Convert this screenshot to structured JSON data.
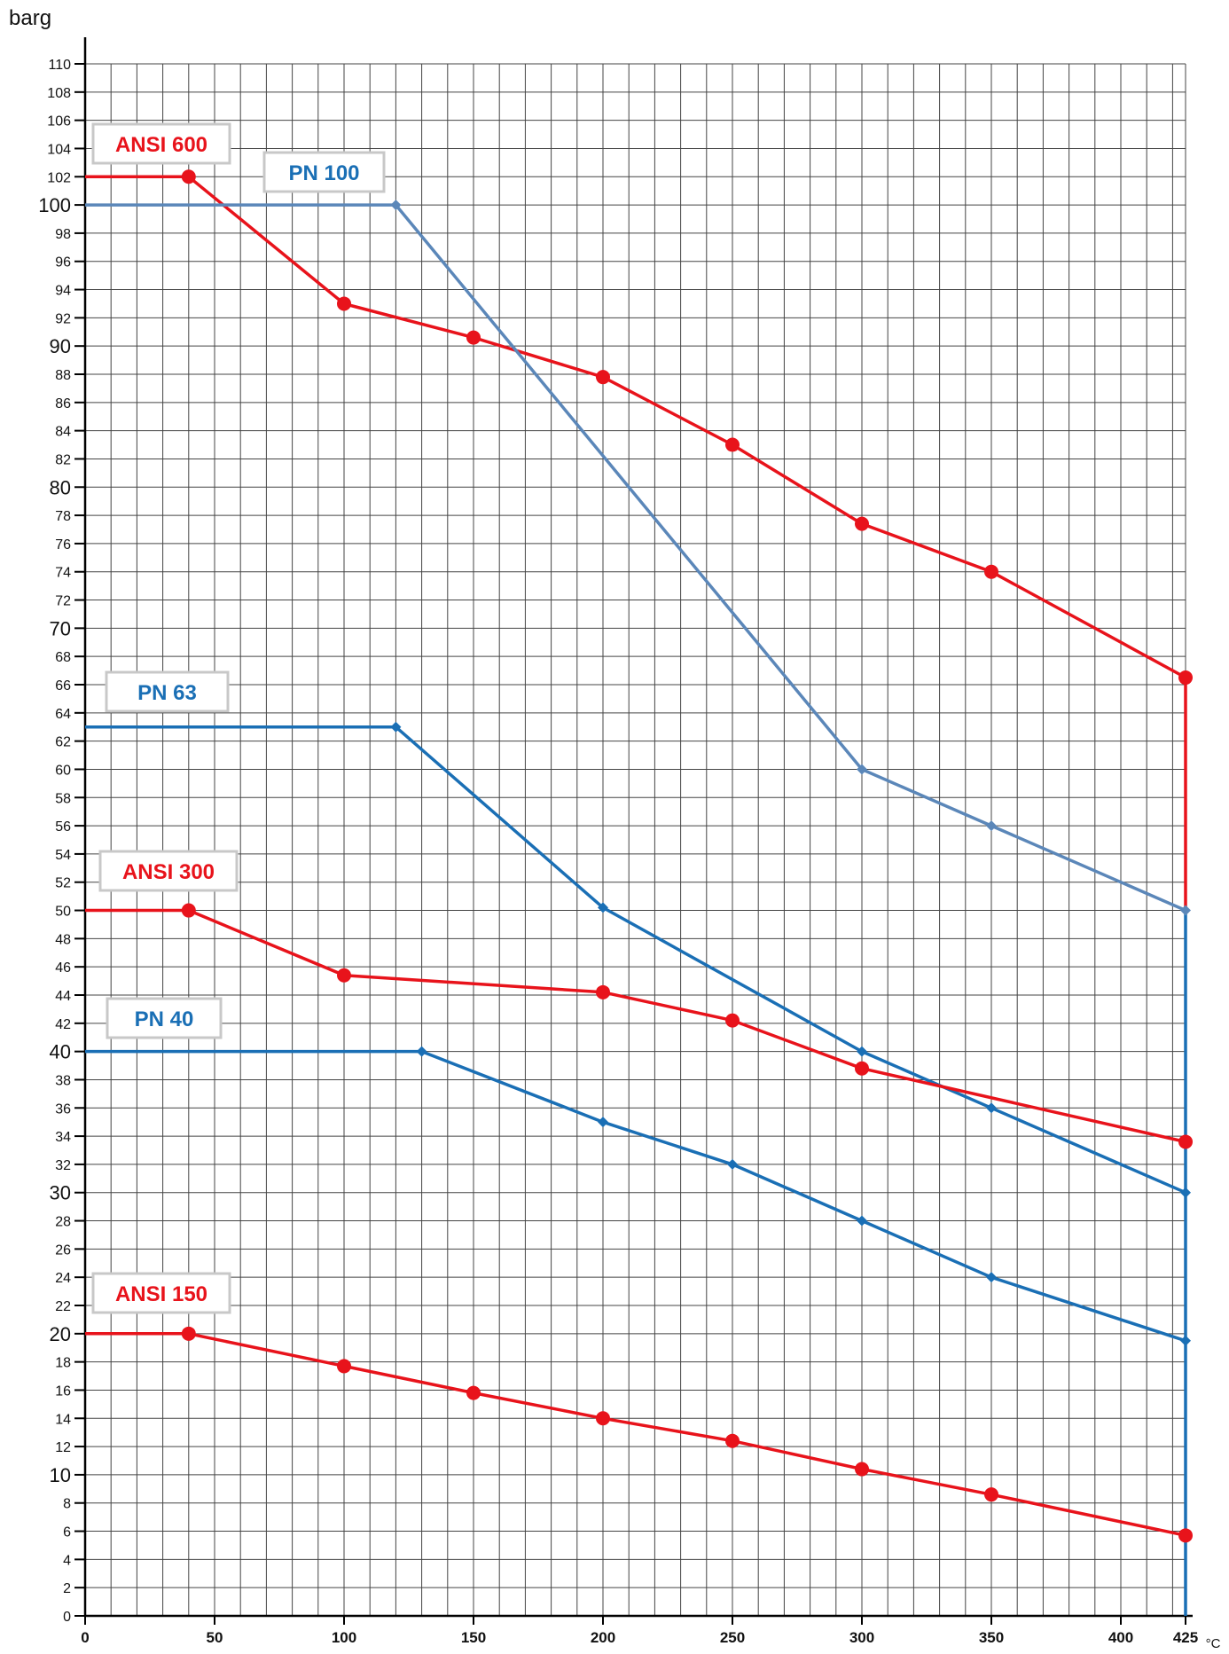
{
  "chart_data": {
    "type": "line",
    "title": "",
    "ylabel": "barg",
    "xlabel": "°C",
    "xlim": [
      0,
      425
    ],
    "ylim": [
      0,
      110
    ],
    "x_ticks": [
      "0",
      "50",
      "100",
      "150",
      "200",
      "250",
      "300",
      "350",
      "400",
      "425"
    ],
    "y_ticks": [
      {
        "v": 0,
        "label": "0"
      },
      {
        "v": 2,
        "label": "2"
      },
      {
        "v": 4,
        "label": "4"
      },
      {
        "v": 6,
        "label": "6"
      },
      {
        "v": 8,
        "label": "8"
      },
      {
        "v": 10,
        "label": "10",
        "major": true
      },
      {
        "v": 12,
        "label": "12"
      },
      {
        "v": 14,
        "label": "14"
      },
      {
        "v": 16,
        "label": "16"
      },
      {
        "v": 18,
        "label": "18"
      },
      {
        "v": 20,
        "label": "20",
        "major": true
      },
      {
        "v": 22,
        "label": "22"
      },
      {
        "v": 24,
        "label": "24"
      },
      {
        "v": 26,
        "label": "26"
      },
      {
        "v": 28,
        "label": "28"
      },
      {
        "v": 30,
        "label": "30",
        "major": true
      },
      {
        "v": 32,
        "label": "32"
      },
      {
        "v": 34,
        "label": "34"
      },
      {
        "v": 36,
        "label": "36"
      },
      {
        "v": 38,
        "label": "38"
      },
      {
        "v": 40,
        "label": "40",
        "major": true
      },
      {
        "v": 42,
        "label": "42"
      },
      {
        "v": 44,
        "label": "44"
      },
      {
        "v": 46,
        "label": "46"
      },
      {
        "v": 48,
        "label": "48"
      },
      {
        "v": 50,
        "label": "50"
      },
      {
        "v": 52,
        "label": "52"
      },
      {
        "v": 54,
        "label": "54"
      },
      {
        "v": 56,
        "label": "56"
      },
      {
        "v": 58,
        "label": "58"
      },
      {
        "v": 60,
        "label": "60"
      },
      {
        "v": 62,
        "label": "62"
      },
      {
        "v": 64,
        "label": "64"
      },
      {
        "v": 66,
        "label": "66"
      },
      {
        "v": 68,
        "label": "68"
      },
      {
        "v": 70,
        "label": "70",
        "major": true
      },
      {
        "v": 72,
        "label": "72"
      },
      {
        "v": 74,
        "label": "74"
      },
      {
        "v": 76,
        "label": "76"
      },
      {
        "v": 78,
        "label": "78"
      },
      {
        "v": 80,
        "label": "80",
        "major": true
      },
      {
        "v": 82,
        "label": "82"
      },
      {
        "v": 84,
        "label": "84"
      },
      {
        "v": 86,
        "label": "86"
      },
      {
        "v": 88,
        "label": "88"
      },
      {
        "v": 90,
        "label": "90",
        "major": true
      },
      {
        "v": 92,
        "label": "92"
      },
      {
        "v": 94,
        "label": "94"
      },
      {
        "v": 96,
        "label": "96"
      },
      {
        "v": 98,
        "label": "98"
      },
      {
        "v": 100,
        "label": "100",
        "major": true
      },
      {
        "v": 102,
        "label": "102"
      },
      {
        "v": 104,
        "label": "104"
      },
      {
        "v": 106,
        "label": "106"
      },
      {
        "v": 108,
        "label": "108"
      },
      {
        "v": 110,
        "label": "110"
      }
    ],
    "grid": true,
    "colors": {
      "ansi": "#e8131b",
      "pn": "#1a6fb5",
      "pn_light": "#5b87b9"
    },
    "series": [
      {
        "name": "ANSI 600",
        "group": "ansi",
        "marker": "circle",
        "points": [
          [
            0,
            102
          ],
          [
            40,
            102
          ],
          [
            100,
            93
          ],
          [
            150,
            90.6
          ],
          [
            200,
            87.8
          ],
          [
            250,
            83
          ],
          [
            300,
            77.4
          ],
          [
            350,
            74
          ],
          [
            425,
            66.5
          ]
        ]
      },
      {
        "name": "PN 100",
        "group": "pn_light",
        "marker": "diamond",
        "points": [
          [
            0,
            100
          ],
          [
            120,
            100
          ],
          [
            300,
            60
          ],
          [
            350,
            56
          ],
          [
            425,
            50
          ]
        ]
      },
      {
        "name": "PN 63",
        "group": "pn",
        "marker": "diamond",
        "points": [
          [
            0,
            63
          ],
          [
            120,
            63
          ],
          [
            200,
            50.2
          ],
          [
            300,
            40
          ],
          [
            350,
            36
          ],
          [
            425,
            30
          ]
        ]
      },
      {
        "name": "ANSI 300",
        "group": "ansi",
        "marker": "circle",
        "points": [
          [
            0,
            50
          ],
          [
            40,
            50
          ],
          [
            100,
            45.4
          ],
          [
            200,
            44.2
          ],
          [
            250,
            42.2
          ],
          [
            300,
            38.8
          ],
          [
            425,
            33.6
          ]
        ]
      },
      {
        "name": "PN 40",
        "group": "pn",
        "marker": "diamond",
        "points": [
          [
            0,
            40
          ],
          [
            130,
            40
          ],
          [
            200,
            35
          ],
          [
            250,
            32
          ],
          [
            300,
            28
          ],
          [
            350,
            24
          ],
          [
            425,
            19.5
          ]
        ]
      },
      {
        "name": "ANSI 150",
        "group": "ansi",
        "marker": "circle",
        "points": [
          [
            0,
            20
          ],
          [
            40,
            20
          ],
          [
            100,
            17.7
          ],
          [
            150,
            15.8
          ],
          [
            200,
            14
          ],
          [
            250,
            12.4
          ],
          [
            300,
            10.4
          ],
          [
            350,
            8.6
          ],
          [
            425,
            5.7
          ]
        ]
      }
    ],
    "vertical_lines": [
      {
        "group": "ansi",
        "x": 425,
        "y_from": 50,
        "y_to": 66.5
      },
      {
        "group": "pn",
        "x": 425,
        "y_from": 0,
        "y_to": 50
      }
    ]
  }
}
